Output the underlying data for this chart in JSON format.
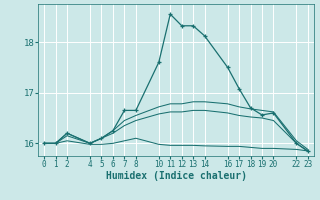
{
  "xlabel": "Humidex (Indice chaleur)",
  "bg_color": "#cce8e8",
  "grid_color": "#ffffff",
  "line_color": "#1a7070",
  "xlim": [
    -0.5,
    23.5
  ],
  "ylim": [
    15.75,
    18.75
  ],
  "yticks": [
    16,
    17,
    18
  ],
  "xticks": [
    0,
    1,
    2,
    4,
    5,
    6,
    7,
    8,
    10,
    11,
    12,
    13,
    14,
    16,
    17,
    18,
    19,
    20,
    22,
    23
  ],
  "series": [
    {
      "x": [
        0,
        1,
        2,
        4,
        5,
        6,
        7,
        8,
        10,
        11,
        12,
        13,
        14,
        16,
        17,
        18,
        19,
        20,
        22,
        23
      ],
      "y": [
        16.0,
        16.0,
        16.2,
        16.0,
        16.1,
        16.25,
        16.65,
        16.65,
        17.6,
        18.55,
        18.32,
        18.32,
        18.12,
        17.5,
        17.08,
        16.7,
        16.56,
        16.6,
        16.0,
        15.85
      ],
      "marker": true
    },
    {
      "x": [
        0,
        1,
        2,
        4,
        5,
        6,
        7,
        8,
        10,
        11,
        12,
        13,
        14,
        16,
        17,
        18,
        19,
        20,
        22,
        23
      ],
      "y": [
        16.0,
        16.0,
        16.2,
        16.0,
        16.1,
        16.25,
        16.45,
        16.55,
        16.72,
        16.78,
        16.78,
        16.82,
        16.82,
        16.78,
        16.72,
        16.68,
        16.65,
        16.62,
        16.05,
        15.88
      ],
      "marker": false
    },
    {
      "x": [
        0,
        1,
        2,
        4,
        5,
        6,
        7,
        8,
        10,
        11,
        12,
        13,
        14,
        16,
        17,
        18,
        19,
        20,
        22,
        23
      ],
      "y": [
        16.0,
        16.0,
        16.15,
        16.0,
        16.1,
        16.2,
        16.35,
        16.45,
        16.58,
        16.62,
        16.62,
        16.65,
        16.65,
        16.6,
        16.55,
        16.52,
        16.5,
        16.45,
        16.0,
        15.84
      ],
      "marker": false
    },
    {
      "x": [
        0,
        1,
        2,
        4,
        5,
        6,
        7,
        8,
        10,
        11,
        12,
        13,
        14,
        16,
        17,
        18,
        19,
        20,
        22,
        23
      ],
      "y": [
        16.0,
        16.0,
        16.05,
        15.98,
        15.98,
        16.0,
        16.05,
        16.1,
        15.98,
        15.96,
        15.96,
        15.96,
        15.95,
        15.94,
        15.94,
        15.92,
        15.9,
        15.9,
        15.88,
        15.85
      ],
      "marker": false
    }
  ]
}
